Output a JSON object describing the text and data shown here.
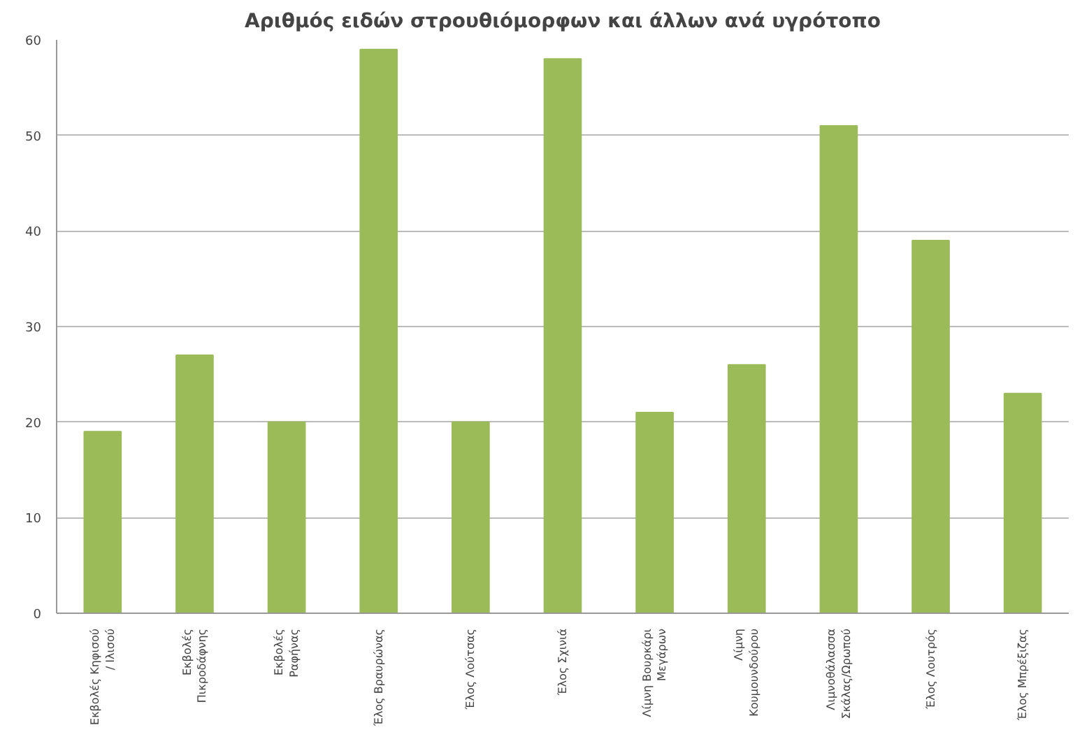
{
  "chart_data": {
    "type": "bar",
    "title": "Αριθμός ειδών στρουθιόμορφων και άλλων ανά υγρότοπο",
    "categories": [
      "Εκβολές Κηφισού\n/ Ιλισού",
      "Εκβολές\nΠικροδάφνης",
      "Εκβολές\nΡαφήνας",
      "Έλος Βραυρώνας",
      "Έλος Λούτσας",
      "Έλος Σχινιά",
      "Λίμνη Βουρκάρι\nΜεγάρων",
      "Λίμνη\nΚουμουνδούρου",
      "Λιμνοθάλασσα\nΣκάλας/Ωρωπού",
      "Έλος Λουτρός",
      "Έλος Μπρέξιζας"
    ],
    "values": [
      19,
      27,
      20,
      59,
      20,
      58,
      21,
      26,
      51,
      39,
      23
    ],
    "color": "#9bbb59",
    "ylim": [
      0,
      60
    ],
    "yticks": [
      0,
      10,
      20,
      30,
      40,
      50,
      60
    ],
    "grid": "y"
  }
}
